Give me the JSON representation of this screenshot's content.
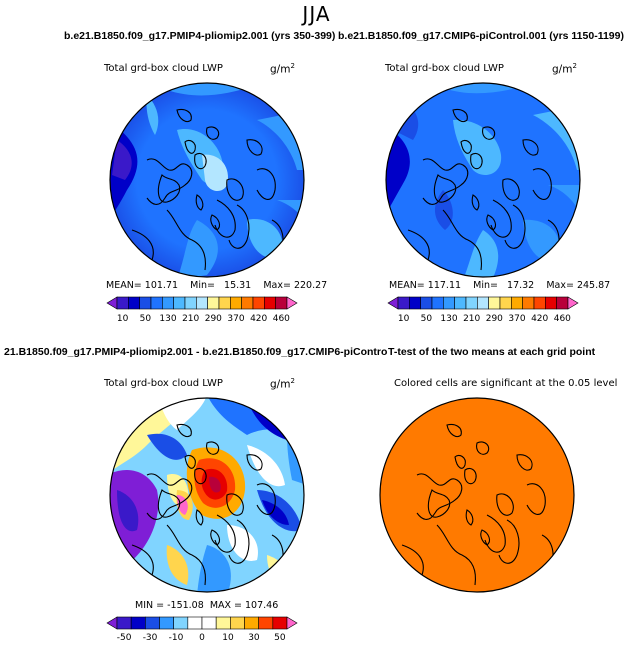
{
  "figure": {
    "season": "JJA"
  },
  "panels": [
    {
      "id": "pliomip",
      "title": "b.e21.B1850.f09_g17.PMIP4-pliomip2.001 (yrs 350-399)",
      "variable": "Total grd-box cloud LWP",
      "units": "g/m",
      "units_exp": "2",
      "stats": {
        "mean_label": "MEAN=",
        "mean": "101.71",
        "min_label": "Min=",
        "min": "15.31",
        "max_label": "Max=",
        "max": "220.27"
      }
    },
    {
      "id": "picontrol",
      "title": "b.e21.B1850.f09_g17.CMIP6-piControl.001 (yrs 1150-1199)",
      "variable": "Total grd-box cloud LWP",
      "units": "g/m",
      "units_exp": "2",
      "stats": {
        "mean_label": "MEAN=",
        "mean": "117.11",
        "min_label": "Min=",
        "min": "17.32",
        "max_label": "Max=",
        "max": "245.87"
      }
    },
    {
      "id": "difference",
      "title": "21.B1850.f09_g17.PMIP4-pliomip2.001 - b.e21.B1850.f09_g17.CMIP6-piControl.001",
      "variable": "Total grd-box cloud LWP",
      "units": "g/m",
      "units_exp": "2",
      "stats": {
        "min_max": "MIN = -151.08  MAX = 107.46"
      }
    },
    {
      "id": "significance",
      "title": "T-test of the two means at each grid point",
      "variable": "Colored cells are significant at the 0.05 level"
    }
  ],
  "colorbars": {
    "absolute": {
      "labels": [
        "10",
        "50",
        "130",
        "210",
        "290",
        "370",
        "420",
        "460"
      ],
      "colors": [
        "#7f1ed6",
        "#3a19c9",
        "#0000c8",
        "#1a4ee6",
        "#1f73ff",
        "#3399ff",
        "#4db8ff",
        "#80d4ff",
        "#b3e6ff",
        "#fff799",
        "#ffd54d",
        "#ffaa00",
        "#ff7a00",
        "#ff4500",
        "#e60000",
        "#b8003a",
        "#ff66cc"
      ]
    },
    "difference": {
      "labels": [
        "-50",
        "-30",
        "-10",
        "0",
        "10",
        "30",
        "50"
      ],
      "colors": [
        "#7f1ed6",
        "#3a19c9",
        "#0000c8",
        "#1a4ee6",
        "#3399ff",
        "#80d4ff",
        "#ffffff",
        "#ffffff",
        "#fff799",
        "#ffd54d",
        "#ffaa00",
        "#ff4500",
        "#e60000",
        "#ff66cc"
      ]
    }
  },
  "colors": {
    "significance_fill": "#ff7a00",
    "coast": "#000000"
  }
}
